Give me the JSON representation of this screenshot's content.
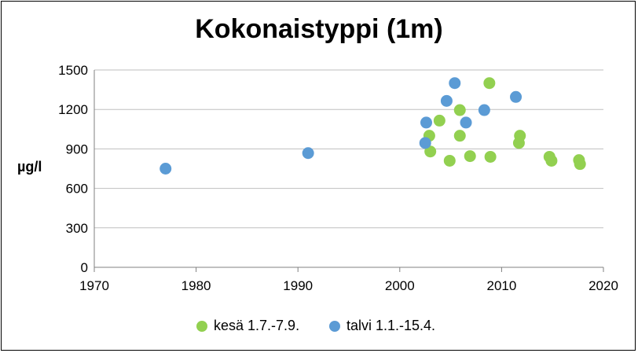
{
  "chart_data": {
    "type": "scatter",
    "title": "Kokonaistyppi (1m)",
    "xlabel": "",
    "ylabel": "µg/l",
    "xlim": [
      1970,
      2020
    ],
    "ylim": [
      0,
      1500
    ],
    "x_ticks": [
      1970,
      1980,
      1990,
      2000,
      2010,
      2020
    ],
    "y_ticks": [
      0,
      300,
      600,
      900,
      1200,
      1500
    ],
    "grid": "horizontal",
    "legend_position": "bottom",
    "series": [
      {
        "name": "kesä 1.7.-7.9.",
        "color": "#92D050",
        "points": [
          [
            2002.9,
            1000
          ],
          [
            2003.0,
            880
          ],
          [
            2003.9,
            1115
          ],
          [
            2004.9,
            810
          ],
          [
            2005.9,
            1195
          ],
          [
            2005.9,
            1000
          ],
          [
            2006.9,
            845
          ],
          [
            2008.8,
            1400
          ],
          [
            2008.9,
            840
          ],
          [
            2011.8,
            1000
          ],
          [
            2011.7,
            945
          ],
          [
            2014.7,
            840
          ],
          [
            2014.9,
            810
          ],
          [
            2017.6,
            815
          ],
          [
            2017.7,
            785
          ]
        ]
      },
      {
        "name": "talvi 1.1.-15.4.",
        "color": "#5B9BD5",
        "points": [
          [
            1977.0,
            750
          ],
          [
            1991.0,
            868
          ],
          [
            2002.6,
            1100
          ],
          [
            2002.5,
            945
          ],
          [
            2004.6,
            1265
          ],
          [
            2005.4,
            1400
          ],
          [
            2006.5,
            1100
          ],
          [
            2008.3,
            1195
          ],
          [
            2011.4,
            1295
          ]
        ]
      }
    ]
  }
}
